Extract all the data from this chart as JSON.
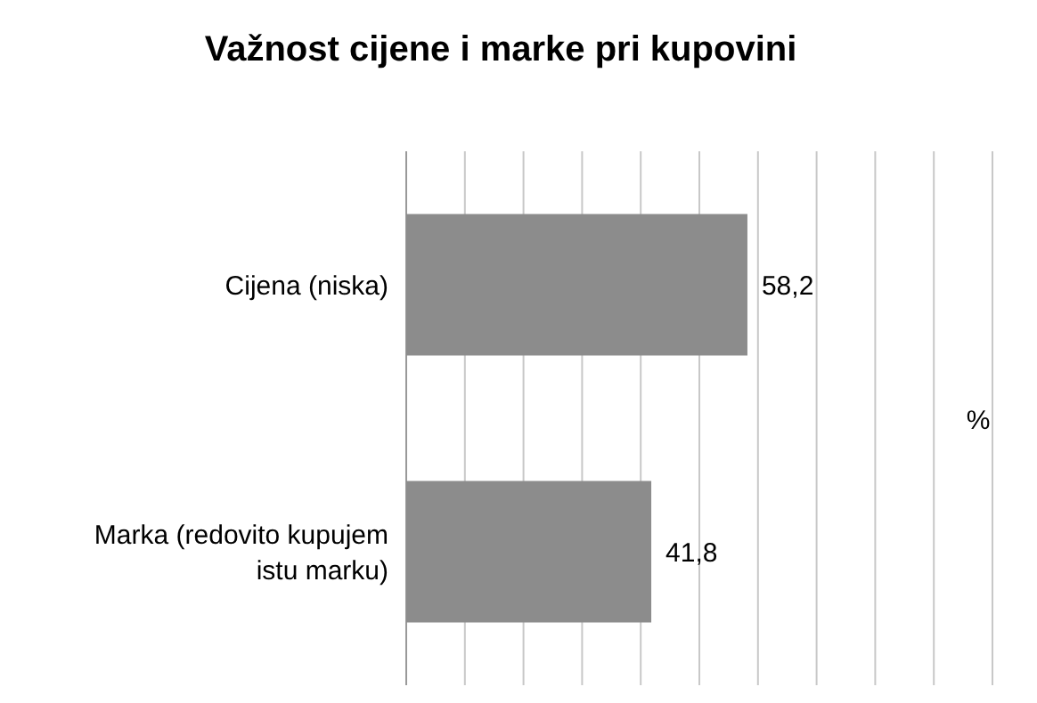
{
  "chart_data": {
    "type": "bar",
    "orientation": "horizontal",
    "title": "Važnost cijene i marke pri kupovini",
    "xlabel": "%",
    "categories": [
      "Cijena (niska)",
      "Marka (redovito kupujem istu marku)"
    ],
    "values": [
      58.2,
      41.8
    ],
    "value_labels": [
      "58,2",
      "41,8"
    ],
    "color": "#8c8c8c",
    "xlim": [
      0,
      100
    ],
    "xticks": [
      {
        "value": 0,
        "label": null
      },
      {
        "value": 10,
        "label": null
      },
      {
        "value": 20,
        "label": null
      },
      {
        "value": 30,
        "label": null
      },
      {
        "value": 40,
        "label": null
      },
      {
        "value": 50,
        "label": null
      },
      {
        "value": 60,
        "label": null
      },
      {
        "value": 70,
        "label": null
      },
      {
        "value": 80,
        "label": null
      },
      {
        "value": 90,
        "label": null
      },
      {
        "value": 100,
        "label": null
      }
    ],
    "grid": "x",
    "tick_labels": "y"
  }
}
